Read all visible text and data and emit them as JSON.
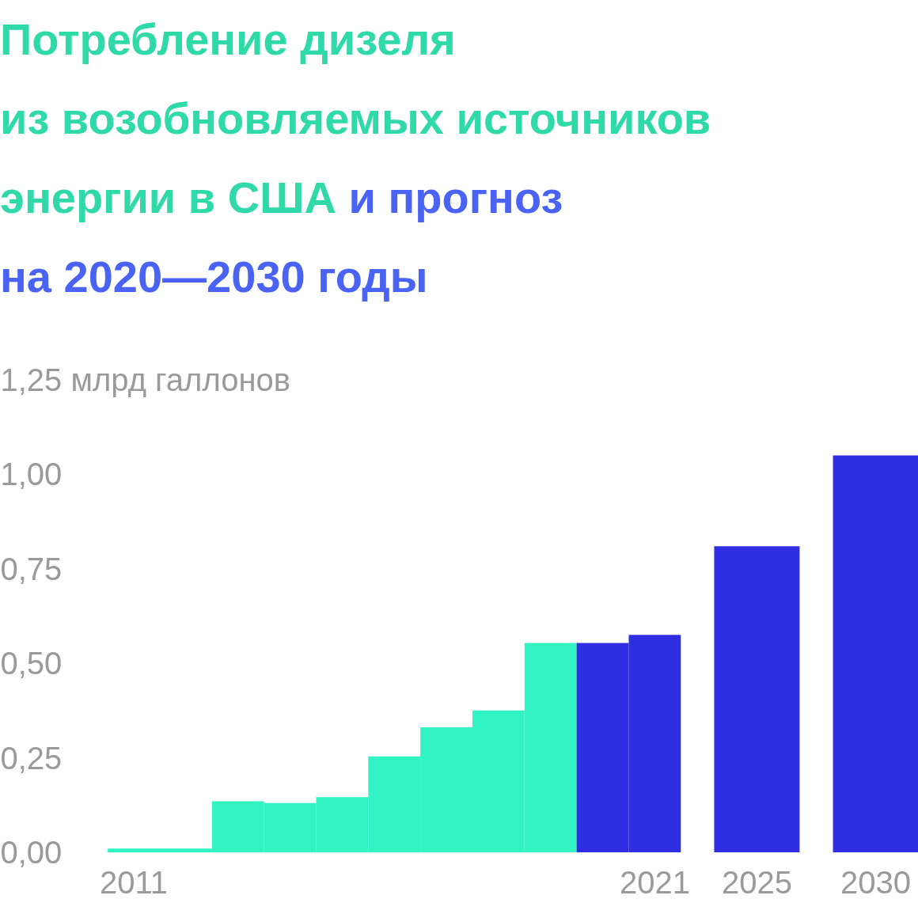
{
  "chart_data": {
    "type": "bar",
    "title": "Потребление дизеля\nиз возобновляемых источников\nэнергии в США",
    "subtitle": "и прогноз\nна 2020—2030 годы",
    "categories": [
      "2011",
      null,
      null,
      null,
      null,
      null,
      null,
      null,
      null,
      null,
      "2021",
      "2025",
      "2030"
    ],
    "values": [
      0.01,
      0.01,
      0.135,
      0.13,
      0.146,
      0.254,
      0.331,
      0.375,
      0.554,
      0.554,
      0.575,
      0.81,
      1.05
    ],
    "colors": [
      "#32f3c3",
      "#32f3c3",
      "#32f3c3",
      "#32f3c3",
      "#32f3c3",
      "#32f3c3",
      "#32f3c3",
      "#32f3c3",
      "#32f3c3",
      "#2f2ee3",
      "#2f2ee3",
      "#2f2ee3",
      "#2f2ee3"
    ],
    "ylim": [
      0,
      1.25
    ],
    "yticks": [
      {
        "value": 0,
        "label": "0,00"
      },
      {
        "value": 0.25,
        "label": "0,25"
      },
      {
        "value": 0.5,
        "label": "0,50"
      },
      {
        "value": 0.75,
        "label": "0,75"
      },
      {
        "value": 1,
        "label": "1,00"
      },
      {
        "value": 1.25,
        "label": "1,25 млрд галлонов"
      }
    ],
    "grid": false
  }
}
